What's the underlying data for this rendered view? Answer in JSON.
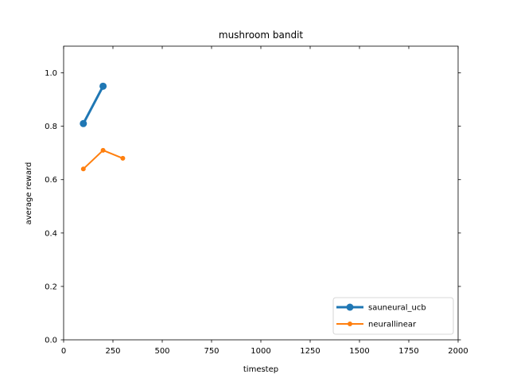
{
  "chart_data": {
    "type": "line",
    "title": "mushroom bandit",
    "xlabel": "timestep",
    "ylabel": "average reward",
    "xlim": [
      0,
      2000
    ],
    "ylim": [
      0,
      1.1
    ],
    "xticks": [
      0,
      250,
      500,
      750,
      1000,
      1250,
      1500,
      1750,
      2000
    ],
    "xtick_labels": [
      "0",
      "250",
      "500",
      "750",
      "1000",
      "1250",
      "1500",
      "1750",
      "2000"
    ],
    "yticks": [
      0.0,
      0.2,
      0.4,
      0.6,
      0.8,
      1.0
    ],
    "ytick_labels": [
      "0.0",
      "0.2",
      "0.4",
      "0.6",
      "0.8",
      "1.0"
    ],
    "grid": false,
    "legend_position": "bottom-right",
    "series": [
      {
        "name": "sauneural_ucb",
        "color": "#1f77b4",
        "x": [
          100,
          200
        ],
        "y": [
          0.81,
          0.95
        ]
      },
      {
        "name": "neurallinear",
        "color": "#ff7f0e",
        "x": [
          100,
          200,
          300
        ],
        "y": [
          0.64,
          0.71,
          0.68
        ]
      }
    ]
  }
}
